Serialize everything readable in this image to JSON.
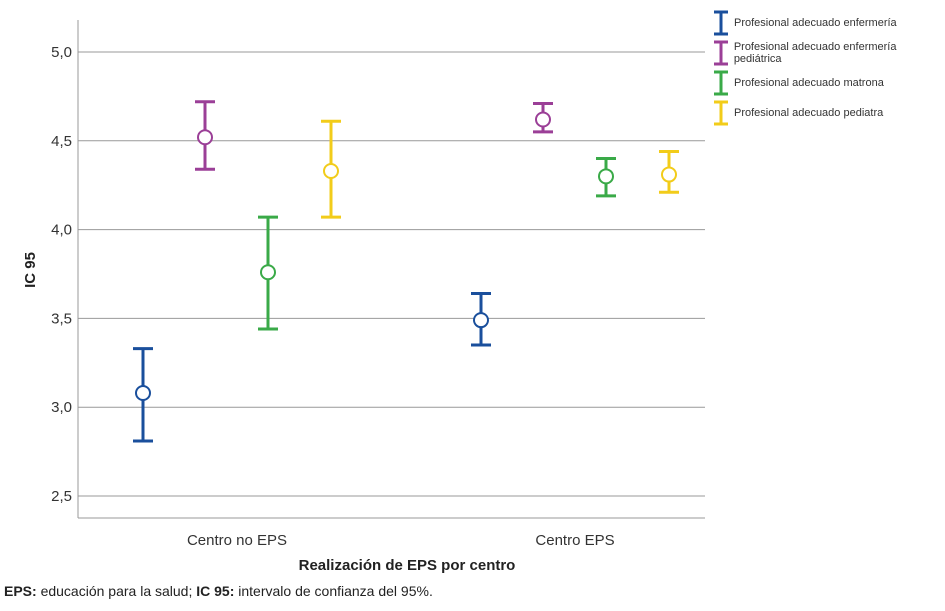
{
  "chart_data": {
    "type": "errorbar",
    "xlabel": "Realización de EPS por centro",
    "ylabel": "IC 95",
    "categories": [
      "Centro no EPS",
      "Centro EPS"
    ],
    "ylim": [
      2.38,
      5.18
    ],
    "yticks": [
      "2,5",
      "3,0",
      "3,5",
      "4,0",
      "4,5",
      "5,0"
    ],
    "ytick_values": [
      2.5,
      3.0,
      3.5,
      4.0,
      4.5,
      5.0
    ],
    "grid": "horizontal",
    "legend_position": "top-right",
    "series": [
      {
        "name": "Profesional adecuado enfermería",
        "color": "#1a4f9c",
        "mean": [
          3.08,
          3.49
        ],
        "lower": [
          2.81,
          3.35
        ],
        "upper": [
          3.33,
          3.64
        ]
      },
      {
        "name": "Profesional adecuado enfermería pediátrica",
        "color": "#9b3f97",
        "mean": [
          4.52,
          4.62
        ],
        "lower": [
          4.34,
          4.55
        ],
        "upper": [
          4.72,
          4.71
        ]
      },
      {
        "name": "Profesional adecuado matrona",
        "color": "#3aaa48",
        "mean": [
          3.76,
          4.3
        ],
        "lower": [
          3.44,
          4.19
        ],
        "upper": [
          4.07,
          4.4
        ]
      },
      {
        "name": "Profesional adecuado pediatra",
        "color": "#f2cc1a",
        "mean": [
          4.33,
          4.31
        ],
        "lower": [
          4.07,
          4.21
        ],
        "upper": [
          4.61,
          4.44
        ]
      }
    ]
  },
  "footnote": {
    "abbr1": "EPS:",
    "text1": " educación para la salud; ",
    "abbr2": "IC 95:",
    "text2": " intervalo de confianza del 95%."
  }
}
